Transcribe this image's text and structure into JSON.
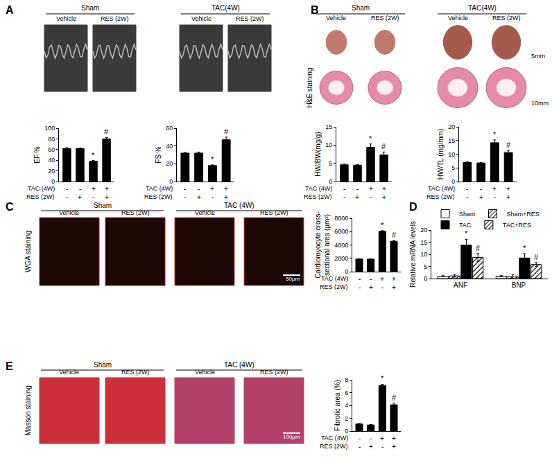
{
  "chart_data": [
    {
      "type": "bar",
      "y_label": "EF %",
      "categories": [
        null,
        null,
        null,
        null
      ],
      "values": [
        62,
        62,
        38,
        80
      ],
      "errors": [
        1.5,
        1,
        1.5,
        2.5
      ],
      "significance": [
        null,
        null,
        "*",
        "#"
      ],
      "color": "#000000",
      "ylim": [
        0,
        100
      ],
      "yticks": [
        0,
        20,
        40,
        60,
        80,
        100
      ],
      "grid": false,
      "tick_labels": "y",
      "condition_rows": [
        {
          "label": "TAC (4W)",
          "marks": [
            "-",
            "-",
            "+",
            "+"
          ]
        },
        {
          "label": "RES (2W)",
          "marks": [
            "-",
            "+",
            "-",
            "+"
          ]
        }
      ]
    },
    {
      "type": "bar",
      "y_label": "FS %",
      "categories": [
        null,
        null,
        null,
        null
      ],
      "values": [
        32,
        32,
        18,
        47
      ],
      "errors": [
        0.8,
        1.2,
        0.8,
        3
      ],
      "significance": [
        null,
        null,
        "*",
        "#"
      ],
      "color": "#000000",
      "ylim": [
        0,
        60
      ],
      "yticks": [
        0,
        20,
        40,
        60
      ],
      "grid": false,
      "tick_labels": "y",
      "condition_rows": [
        {
          "label": "TAC (4W)",
          "marks": [
            "-",
            "-",
            "+",
            "+"
          ]
        },
        {
          "label": "RES (2W)",
          "marks": [
            "-",
            "+",
            "-",
            "+"
          ]
        }
      ]
    },
    {
      "type": "bar",
      "y_label": "HW/BW(mg/g)",
      "categories": [
        null,
        null,
        null,
        null
      ],
      "values": [
        4.6,
        4.5,
        9.4,
        7.3
      ],
      "errors": [
        0.2,
        0.2,
        0.9,
        0.8
      ],
      "significance": [
        null,
        null,
        "*",
        "#"
      ],
      "color": "#000000",
      "ylim": [
        0,
        15
      ],
      "yticks": [
        0,
        5,
        10,
        15
      ],
      "grid": false,
      "tick_labels": "y",
      "condition_rows": [
        {
          "label": "TAC (4W)",
          "marks": [
            "-",
            "-",
            "+",
            "+"
          ]
        },
        {
          "label": "RES (2W)",
          "marks": [
            "-",
            "+",
            "-",
            "+"
          ]
        }
      ]
    },
    {
      "type": "bar",
      "y_label": "HW/TL (mg/mm)",
      "categories": [
        null,
        null,
        null,
        null
      ],
      "values": [
        7,
        6.8,
        14.2,
        10.6
      ],
      "errors": [
        0.2,
        0.2,
        1,
        0.8
      ],
      "significance": [
        null,
        null,
        "*",
        "#"
      ],
      "color": "#000000",
      "ylim": [
        0,
        20
      ],
      "yticks": [
        0,
        5,
        10,
        15,
        20
      ],
      "grid": false,
      "tick_labels": "y",
      "condition_rows": [
        {
          "label": "TAC (4W)",
          "marks": [
            "-",
            "-",
            "+",
            "+"
          ]
        },
        {
          "label": "RES (2W)",
          "marks": [
            "-",
            "+",
            "-",
            "+"
          ]
        }
      ]
    },
    {
      "type": "bar",
      "y_label": "Cardiomyocyte cross-\nsectional area (μm²)",
      "categories": [
        null,
        null,
        null,
        null
      ],
      "values": [
        1900,
        1880,
        6050,
        4550
      ],
      "errors": [
        40,
        40,
        100,
        150
      ],
      "significance": [
        null,
        null,
        "*",
        "#"
      ],
      "color": "#000000",
      "ylim": [
        0,
        8000
      ],
      "yticks": [
        0,
        2000,
        4000,
        6000,
        8000
      ],
      "grid": false,
      "tick_labels": "y",
      "condition_rows": [
        {
          "label": "TAC (4W)",
          "marks": [
            "-",
            "-",
            "+",
            "+"
          ]
        },
        {
          "label": "RES (2W)",
          "marks": [
            "-",
            "+",
            "-",
            "+"
          ]
        }
      ]
    },
    {
      "type": "bar",
      "y_label": "Relative mRNA levels",
      "categories": [
        "ANF",
        "BNP"
      ],
      "series": [
        {
          "name": "Sham",
          "color": "#ffffff",
          "marker": "solid",
          "values": [
            1,
            1
          ],
          "errors": [
            0.2,
            0.2
          ],
          "significance": [
            null,
            null
          ]
        },
        {
          "name": "Sham+RES",
          "color": "#ffffff",
          "marker": "hatched",
          "values": [
            1.1,
            0.8
          ],
          "errors": [
            0.5,
            0.8
          ],
          "significance": [
            null,
            null
          ]
        },
        {
          "name": "TAC",
          "color": "#000000",
          "marker": "solid",
          "values": [
            13.8,
            8.5
          ],
          "errors": [
            2.4,
            1.8
          ],
          "significance": [
            "*",
            "*"
          ]
        },
        {
          "name": "TAC+RES",
          "color": "#ffffff",
          "marker": "hatched",
          "values": [
            8.7,
            5.8
          ],
          "errors": [
            1.6,
            0.8
          ],
          "significance": [
            "#",
            "#"
          ]
        }
      ],
      "ylim": [
        0,
        20
      ],
      "yticks": [
        0,
        5,
        10,
        15,
        20
      ],
      "grid": false,
      "legend": "top"
    },
    {
      "type": "bar",
      "y_label": "Fibrotic area (%)",
      "categories": [
        null,
        null,
        null,
        null
      ],
      "values": [
        1.1,
        0.95,
        7.1,
        4.1
      ],
      "errors": [
        0.08,
        0.08,
        0.2,
        0.25
      ],
      "significance": [
        null,
        null,
        "*",
        "#"
      ],
      "color": "#000000",
      "ylim": [
        0,
        8
      ],
      "yticks": [
        0,
        2,
        4,
        6,
        8
      ],
      "grid": false,
      "tick_labels": "y",
      "condition_rows": [
        {
          "label": "TAC (4W)",
          "marks": [
            "-",
            "-",
            "+",
            "+"
          ]
        },
        {
          "label": "RES (2W)",
          "marks": [
            "-",
            "+",
            "-",
            "+"
          ]
        }
      ]
    }
  ],
  "figure": {
    "panels": [
      {
        "letter": "A",
        "groups": [
          {
            "label": "Sham",
            "columns": [
              "Vehicle",
              "RES (2W)"
            ]
          },
          {
            "label": "TAC(4W)",
            "columns": [
              "Vehicle",
              "RES (2W)"
            ]
          }
        ]
      },
      {
        "letter": "B",
        "groups": [
          {
            "label": "Sham",
            "columns": [
              "Vehicle",
              "RES (2W)"
            ]
          },
          {
            "label": "TAC(4W)",
            "columns": [
              "Vehicle",
              "RES (2W)"
            ]
          }
        ],
        "image_rows": [
          {
            "scale_bar": "5mm"
          },
          {
            "label": "H&E staining",
            "scale_bar": "10mm"
          }
        ]
      },
      {
        "letter": "C",
        "groups": [
          {
            "label": "Sham",
            "columns": [
              "Vehicle",
              "RES (2W)"
            ]
          },
          {
            "label": "TAC (4W)",
            "columns": [
              "Vehicle",
              "RES (2W)"
            ]
          }
        ],
        "image_rows": [
          {
            "label": "WGA staining",
            "scale_bar": "50μm"
          }
        ]
      },
      {
        "letter": "D"
      },
      {
        "letter": "E",
        "groups": [
          {
            "label": "Sham",
            "columns": [
              "Vehicle",
              "RES (2W)"
            ]
          },
          {
            "label": "TAC (4W)",
            "columns": [
              "Vehicle",
              "RES (2W)"
            ]
          }
        ],
        "image_rows": [
          {
            "label": "Masson staining",
            "scale_bar": "100μm"
          }
        ]
      }
    ]
  }
}
